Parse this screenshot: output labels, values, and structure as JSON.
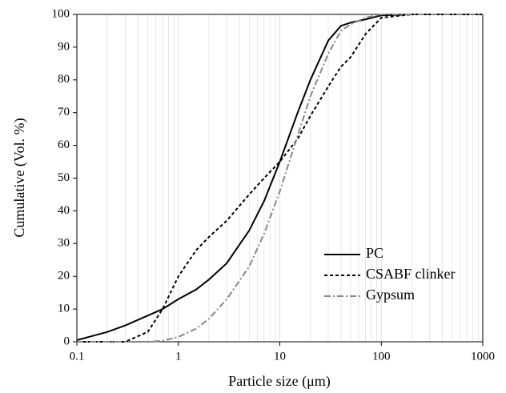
{
  "chart_data": {
    "type": "line",
    "xlabel": "Particle size (μm)",
    "ylabel": "Cumulative (Vol. %)",
    "xscale": "log",
    "xlim": [
      0.1,
      1000
    ],
    "xticks": [
      0.1,
      1,
      10,
      100,
      1000
    ],
    "ylim": [
      0,
      100
    ],
    "yticks": [
      0,
      10,
      20,
      30,
      40,
      50,
      60,
      70,
      80,
      90,
      100
    ],
    "grid": true,
    "legend": "lower right",
    "x": [
      0.1,
      0.2,
      0.3,
      0.5,
      0.7,
      1,
      1.5,
      2,
      3,
      5,
      7,
      10,
      15,
      20,
      30,
      40,
      50,
      70,
      100,
      200,
      1000
    ],
    "series": [
      {
        "name": "PC",
        "color": "#000000",
        "dash": "solid",
        "values": [
          0.5,
          3,
          5,
          8,
          10,
          13,
          16,
          19,
          24,
          34,
          43,
          55,
          70,
          80,
          92,
          96.5,
          97.5,
          98.5,
          99.7,
          100,
          100
        ]
      },
      {
        "name": "CSABF clinker",
        "color": "#000000",
        "dash": "dashed",
        "values": [
          0,
          0,
          0,
          3,
          10,
          20,
          28,
          32,
          37,
          45,
          50,
          55,
          62,
          69,
          78,
          84,
          87,
          94,
          99,
          100,
          100
        ]
      },
      {
        "name": "Gypsum",
        "color": "#888888",
        "dash": "dashdot",
        "values": [
          0,
          0,
          0,
          0,
          0.3,
          1.5,
          4,
          7,
          13,
          23,
          33,
          46,
          63,
          75,
          88,
          95,
          97,
          99,
          100,
          100,
          100
        ]
      }
    ]
  }
}
